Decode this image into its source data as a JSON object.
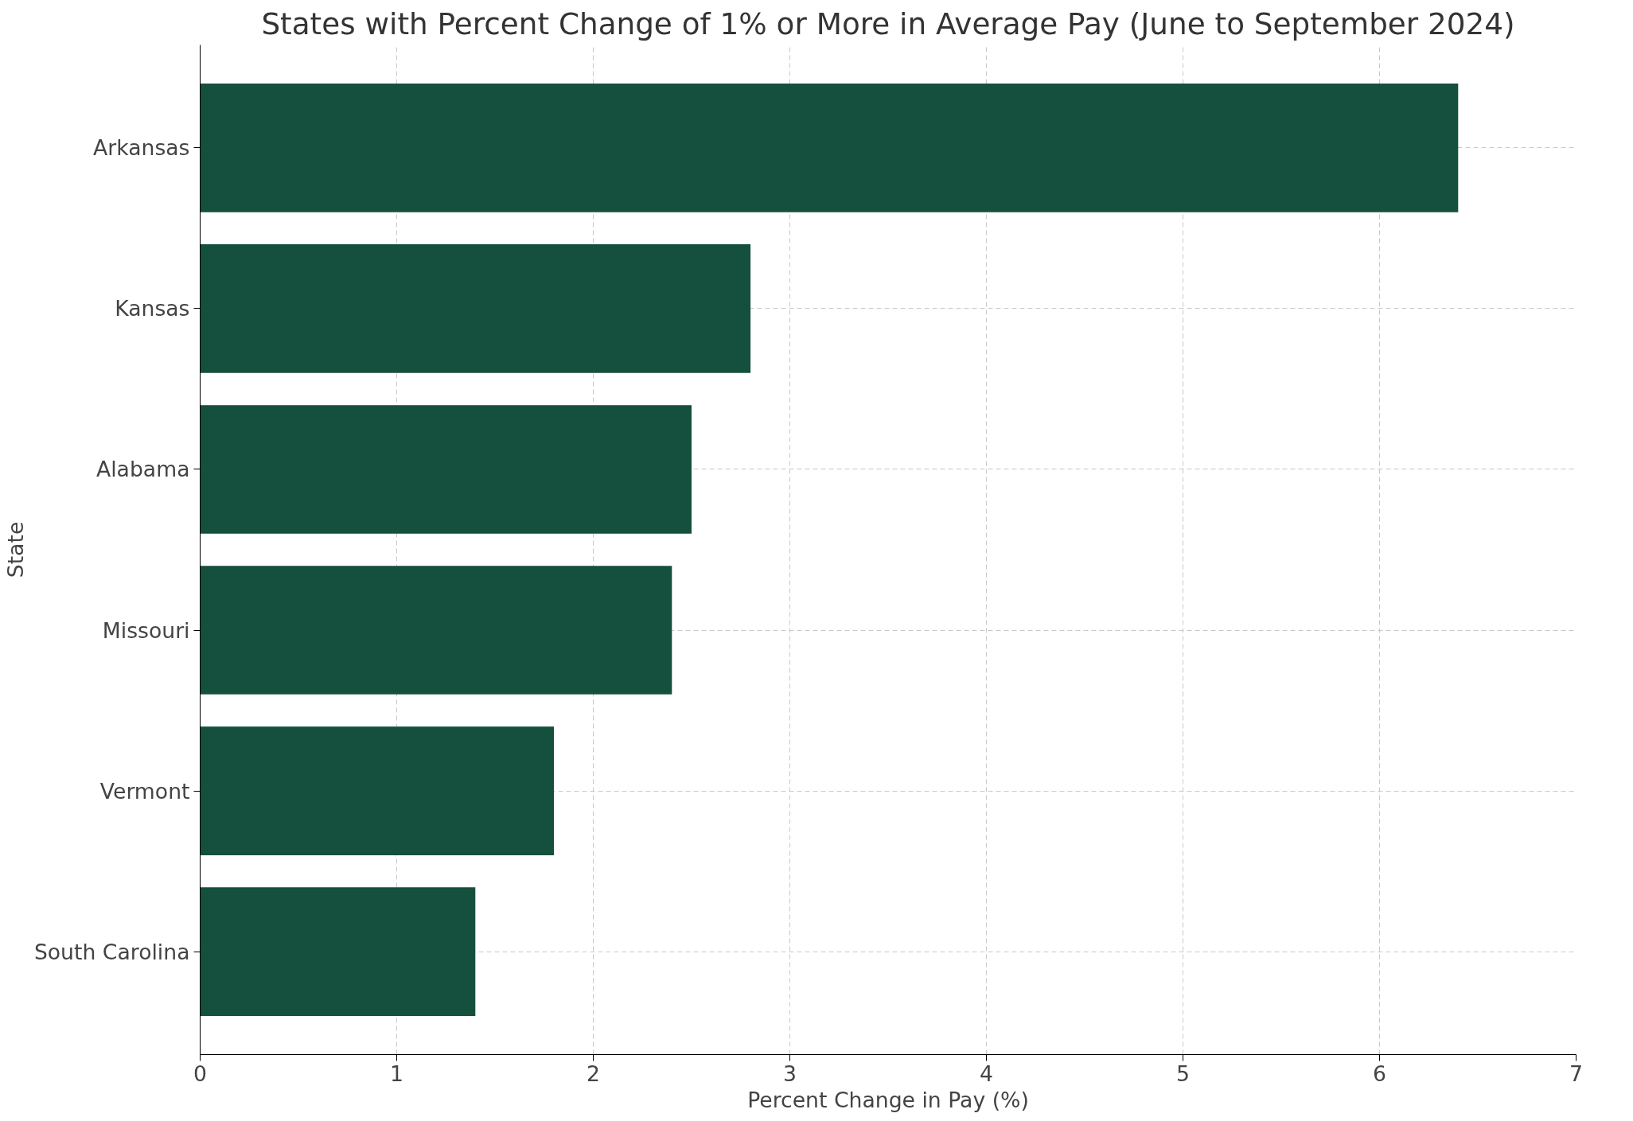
{
  "chart_data": {
    "type": "bar",
    "orientation": "horizontal",
    "title": "States with Percent Change of 1% or More in Average Pay (June to September 2024)",
    "xlabel": "Percent Change in Pay (%)",
    "ylabel": "State",
    "categories": [
      "Arkansas",
      "Kansas",
      "Alabama",
      "Missouri",
      "Vermont",
      "South Carolina"
    ],
    "values": [
      6.4,
      2.8,
      2.5,
      2.4,
      1.8,
      1.4
    ],
    "color": "#154f3d",
    "xlim": [
      0,
      7
    ],
    "xticks": [
      0,
      1,
      2,
      3,
      4,
      5,
      6,
      7
    ],
    "grid": true,
    "line_style": "dashed"
  }
}
